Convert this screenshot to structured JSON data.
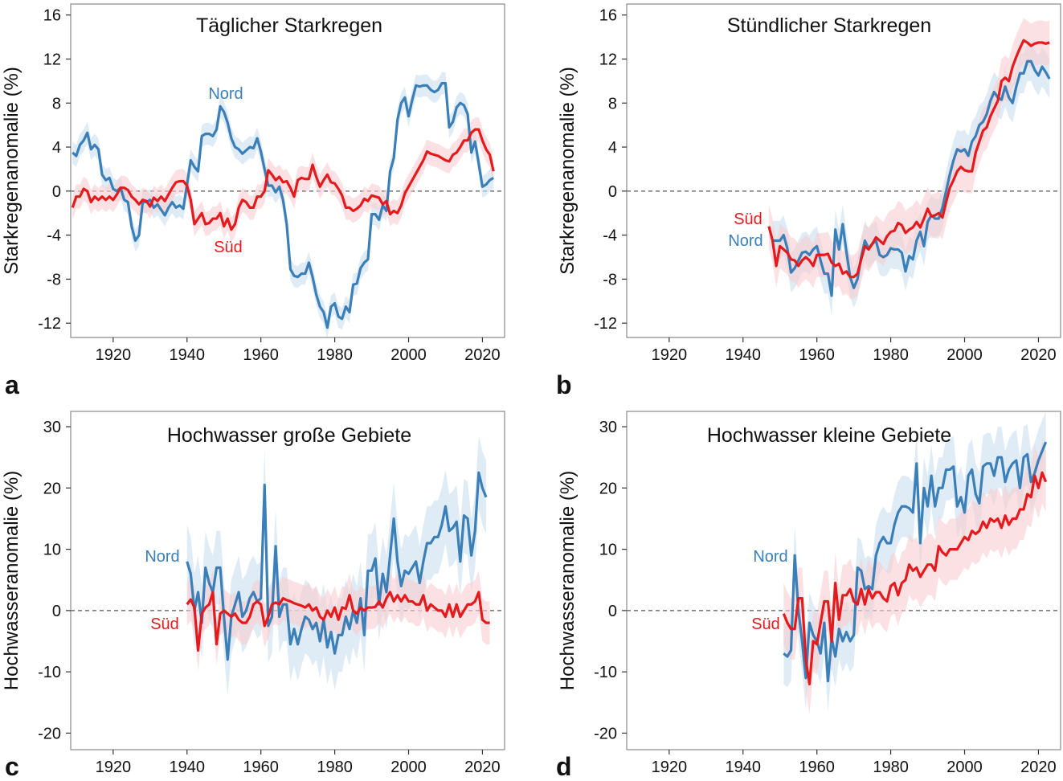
{
  "chart_data": [
    {
      "panel": "a",
      "type": "line",
      "title": "Täglicher Starkregen",
      "ylabel": "Starkregenanomalie (%)",
      "xlabel": "",
      "xlim": [
        1908.5,
        2026
      ],
      "ylim": [
        -13.3,
        17
      ],
      "xticks": [
        1920,
        1940,
        1960,
        1980,
        2000,
        2020
      ],
      "yticks": [
        -12,
        -8,
        -4,
        0,
        4,
        8,
        12,
        16
      ],
      "reference_line": 0,
      "series": [
        {
          "name": "Nord",
          "color": "#3a7fb8",
          "band_color": "#c9ddef",
          "ci": 1.0,
          "start_year": 1909,
          "values": [
            3.5,
            3.2,
            4.2,
            4.6,
            5.3,
            3.8,
            4.2,
            3.8,
            1.5,
            1.0,
            1.2,
            0.2,
            0,
            0.3,
            -0.8,
            -1.0,
            -3.2,
            -4.5,
            -4.0,
            -1.0,
            -1.0,
            -0.8,
            -1.5,
            -1.2,
            -1.7,
            -2.2,
            -1.5,
            -1.0,
            -1.5,
            -1.3,
            -1.6,
            0.6,
            2.8,
            2.2,
            1.8,
            5.0,
            5.2,
            5.2,
            5.0,
            5.6,
            7.7,
            7.2,
            6.2,
            4.8,
            4.0,
            3.8,
            3.4,
            3.7,
            4.0,
            3.9,
            4.8,
            3.6,
            2.0,
            0.5,
            0.5,
            -0.1,
            0.4,
            -0.8,
            -3.0,
            -7.1,
            -7.7,
            -7.8,
            -7.5,
            -7.5,
            -6.5,
            -7.8,
            -9.4,
            -10.5,
            -11.0,
            -12.4,
            -10.5,
            -10.2,
            -11.4,
            -11.6,
            -10.5,
            -11.0,
            -8.5,
            -8.4,
            -7.0,
            -6.5,
            -6.2,
            -2.1,
            -2.1,
            -2.6,
            -1.3,
            -1.8,
            1.8,
            3.0,
            6.5,
            8.0,
            8.5,
            6.8,
            8.3,
            9.6,
            9.5,
            9.6,
            9.6,
            9.2,
            9.0,
            9.2,
            9.8,
            9.8,
            5.8,
            6.3,
            7.6,
            8.0,
            7.8,
            7.0,
            3.5,
            4.5,
            2.5,
            0.4,
            0.6,
            1.0,
            1.2
          ]
        },
        {
          "name": "Süd",
          "color": "#e41a1c",
          "band_color": "#f9cdd0",
          "ci": 1.1,
          "start_year": 1909,
          "values": [
            -1.5,
            -0.5,
            -0.5,
            0.2,
            0,
            -1.0,
            -0.5,
            -0.8,
            -0.5,
            -0.8,
            -0.5,
            -0.8,
            -0.3,
            0.3,
            0.3,
            0.1,
            -0.5,
            -0.8,
            -1.2,
            -0.8,
            -0.9,
            -1.4,
            -0.6,
            -0.9,
            -0.5,
            -0.9,
            -0.3,
            0.3,
            0.8,
            0.9,
            0.9,
            0.5,
            -0.8,
            -3.0,
            -2.5,
            -2.0,
            -3.0,
            -2.9,
            -2.5,
            -2.5,
            -2.0,
            -3.2,
            -2.5,
            -3.5,
            -3.0,
            -1.5,
            -0.8,
            -1.0,
            -1.5,
            -1.5,
            -0.5,
            -0.5,
            0,
            1.9,
            1.5,
            1.0,
            1.3,
            0.8,
            0.9,
            0.3,
            -0.5,
            1.0,
            1.2,
            1.1,
            1.1,
            2.4,
            1.3,
            0.4,
            1.0,
            1.5,
            0.8,
            0.7,
            0.2,
            -0.4,
            -1.5,
            -1.5,
            -1.8,
            -1.6,
            -1.3,
            -0.7,
            -0.9,
            -0.4,
            -0.5,
            -0.6,
            -1.2,
            -0.9,
            -2.1,
            -1.8,
            -2.0,
            -1.3,
            -0.2,
            0.4,
            1.0,
            1.6,
            2.2,
            2.8,
            3.6,
            3.4,
            3.3,
            3.2,
            3.0,
            2.8,
            2.7,
            3.3,
            3.5,
            4.0,
            4.6,
            4.6,
            5.3,
            5.6,
            5.6,
            4.6,
            3.8,
            3.3,
            1.8
          ]
        }
      ]
    },
    {
      "panel": "b",
      "type": "line",
      "title": "Stündlicher Starkregen",
      "ylabel": "Starkregenanomalie (%)",
      "xlabel": "",
      "xlim": [
        1908.5,
        2026
      ],
      "ylim": [
        -13.3,
        17
      ],
      "xticks": [
        1920,
        1940,
        1960,
        1980,
        2000,
        2020
      ],
      "yticks": [
        -12,
        -8,
        -4,
        0,
        4,
        8,
        12,
        16
      ],
      "reference_line": 0,
      "series": [
        {
          "name": "Nord",
          "color": "#3a7fb8",
          "band_color": "#c9ddef",
          "ci": 1.8,
          "start_year": 1948,
          "values": [
            -4.5,
            -4.5,
            -4.5,
            -4.0,
            -5.2,
            -7.4,
            -7.0,
            -6.3,
            -5.6,
            -5.5,
            -5.8,
            -5.3,
            -5.0,
            -6.3,
            -7.5,
            -7.5,
            -9.5,
            -3.5,
            -5.3,
            -3.0,
            -5.5,
            -7.8,
            -8.8,
            -8.0,
            -6.0,
            -4.5,
            -5.2,
            -4.8,
            -4.5,
            -5.8,
            -6.0,
            -5.8,
            -5.2,
            -5.3,
            -5.3,
            -5.6,
            -7.3,
            -5.9,
            -6.2,
            -4.5,
            -3.7,
            -5.0,
            -2.8,
            -2.2,
            -2.5,
            -2.5,
            -1.5,
            0,
            1.5,
            2.8,
            3.8,
            3.6,
            3.8,
            3.2,
            4.5,
            5.0,
            6.0,
            6.3,
            7.0,
            8.2,
            9.0,
            8.5,
            8.3,
            9.5,
            8.5,
            8.0,
            9.5,
            10.7,
            10.7,
            11.8,
            11.8,
            11.0,
            10.5,
            11.3,
            10.8,
            10.2
          ]
        },
        {
          "name": "Süd",
          "color": "#e41a1c",
          "band_color": "#f9cdd0",
          "ci": 2.0,
          "start_year": 1947,
          "values": [
            -3.2,
            -4.5,
            -6.8,
            -5.0,
            -5.3,
            -5.6,
            -6.2,
            -6.3,
            -6.8,
            -6.3,
            -6.0,
            -6.3,
            -6.8,
            -5.8,
            -5.8,
            -5.8,
            -5.7,
            -6.5,
            -6.8,
            -6.6,
            -7.5,
            -7.3,
            -7.8,
            -7.8,
            -7.5,
            -6.2,
            -5.0,
            -5.3,
            -4.8,
            -4.2,
            -4.5,
            -4.8,
            -4.1,
            -3.7,
            -3.6,
            -2.9,
            -3.1,
            -3.8,
            -3.5,
            -3.3,
            -2.8,
            -3.3,
            -2.5,
            -1.6,
            -2.3,
            -2.2,
            -2.0,
            -2.4,
            -1.0,
            0.3,
            1.0,
            1.8,
            2.2,
            1.9,
            1.8,
            1.8,
            3.5,
            4.5,
            5.5,
            5.8,
            6.8,
            7.5,
            8.2,
            10.0,
            10.3,
            10.0,
            11.3,
            12.2,
            13.0,
            13.7,
            13.5,
            13.2,
            13.4,
            13.5,
            13.5,
            13.4,
            13.5
          ]
        }
      ]
    },
    {
      "panel": "c",
      "type": "line",
      "title": "Hochwasser große Gebiete",
      "ylabel": "Hochwasseranomalie (%)",
      "xlabel": "",
      "xlim": [
        1908.5,
        2026
      ],
      "ylim": [
        -22.7,
        32.5
      ],
      "xticks": [
        1920,
        1940,
        1960,
        1980,
        2000,
        2020
      ],
      "yticks": [
        -20,
        -10,
        0,
        10,
        20,
        30
      ],
      "reference_line": 0,
      "series": [
        {
          "name": "Nord",
          "color": "#3a7fb8",
          "band_color": "#c9ddef",
          "ci": 6.0,
          "start_year": 1940,
          "values": [
            8,
            6,
            0,
            3,
            -2,
            7,
            4.5,
            3,
            7,
            7,
            -1,
            -8,
            -1,
            1,
            3,
            -1,
            0,
            2,
            3,
            1.5,
            2,
            20.5,
            -2.5,
            -1,
            10.5,
            -1,
            1,
            1,
            -5.5,
            -3,
            -5.5,
            -3,
            -1,
            -1.5,
            -3,
            -2,
            -5,
            -1.5,
            -6,
            -3.5,
            -7,
            -4,
            -4,
            -1,
            -3,
            0,
            -2,
            2,
            -4,
            6.5,
            6.5,
            8.5,
            1,
            6,
            3,
            9,
            15,
            8,
            4,
            6.5,
            6,
            7,
            8,
            4.5,
            8,
            11,
            11,
            12,
            12,
            14,
            17,
            13,
            13.5,
            14.5,
            8,
            15.5,
            15,
            9,
            13,
            22.5,
            20,
            18.5
          ]
        },
        {
          "name": "Süd",
          "color": "#e41a1c",
          "band_color": "#f9cdd0",
          "ci": 3.5,
          "start_year": 1940,
          "values": [
            1,
            1.8,
            0.5,
            -6.5,
            -0.5,
            0.5,
            1,
            3,
            -5.5,
            -0.5,
            0,
            -0.5,
            -1,
            -0.5,
            -1.5,
            -2,
            -2,
            -1,
            1,
            1.5,
            1,
            -2.5,
            -1,
            1,
            1.3,
            1,
            2,
            1.7,
            1.5,
            1.2,
            1,
            0.8,
            0.5,
            1,
            0,
            0.5,
            -1,
            -1.5,
            0,
            -1,
            0.5,
            -1.5,
            0.5,
            0.3,
            2.5,
            0,
            -0.5,
            0.5,
            0,
            0.5,
            0.5,
            0.6,
            1.5,
            0.5,
            2,
            3,
            1.5,
            2.5,
            1.5,
            2.5,
            1.5,
            1.5,
            1,
            1,
            2.5,
            0,
            1,
            0.5,
            0,
            0,
            -1,
            1,
            -1,
            1,
            -1,
            0,
            1,
            1,
            1.5,
            3,
            -1.5,
            -2,
            -2
          ]
        }
      ]
    },
    {
      "panel": "d",
      "type": "line",
      "title": "Hochwasser kleine Gebiete",
      "ylabel": "Hochwasseranomalie (%)",
      "xlabel": "",
      "xlim": [
        1908.5,
        2026
      ],
      "ylim": [
        -22.7,
        32.5
      ],
      "xticks": [
        1920,
        1940,
        1960,
        1980,
        2000,
        2020
      ],
      "yticks": [
        -20,
        -10,
        0,
        10,
        20,
        30
      ],
      "reference_line": 0,
      "series": [
        {
          "name": "Nord",
          "color": "#3a7fb8",
          "band_color": "#c9ddef",
          "ci": 5.0,
          "start_year": 1951,
          "values": [
            -7,
            -7.5,
            -6.5,
            9,
            0,
            -5,
            -11,
            -2,
            -4,
            -5,
            -7,
            -2,
            -11.5,
            -4.5,
            -7.5,
            -3,
            -5,
            -3.5,
            -5,
            -4,
            7,
            6.5,
            3.5,
            4,
            3.5,
            9,
            11,
            12,
            11,
            11,
            14,
            16,
            17,
            17,
            16.7,
            16,
            24,
            11,
            20,
            17,
            22,
            17,
            20,
            20,
            23,
            23,
            23.5,
            17,
            18.5,
            16,
            22,
            23,
            19,
            17.5,
            23.5,
            24,
            24,
            22,
            25,
            25,
            21,
            23,
            24,
            24.5,
            20,
            25,
            25.5,
            21,
            22.5,
            24.5,
            26,
            27.5
          ]
        },
        {
          "name": "Süd",
          "color": "#e41a1c",
          "band_color": "#f9cdd0",
          "ci": 5.0,
          "start_year": 1951,
          "values": [
            -0.5,
            -2,
            -3,
            -3,
            2,
            2,
            -8,
            -12,
            -5,
            -5.5,
            -2,
            1.5,
            1.5,
            -5,
            4.5,
            -1.5,
            2.5,
            2.5,
            3.5,
            1.5,
            1,
            3.5,
            1,
            3.5,
            2,
            3,
            3,
            2,
            1.5,
            4,
            4.5,
            2.5,
            4.5,
            5,
            7.5,
            6.5,
            7,
            5.5,
            6.5,
            7.5,
            7.5,
            6.5,
            10.5,
            9.5,
            9,
            10,
            10,
            10,
            11,
            12,
            11.5,
            13,
            12.5,
            13,
            14.5,
            13.5,
            15,
            14.5,
            15,
            13.5,
            15.5,
            14,
            15,
            15,
            16.5,
            16.5,
            19,
            18.5,
            22,
            20,
            22.5,
            21
          ]
        }
      ]
    }
  ]
}
